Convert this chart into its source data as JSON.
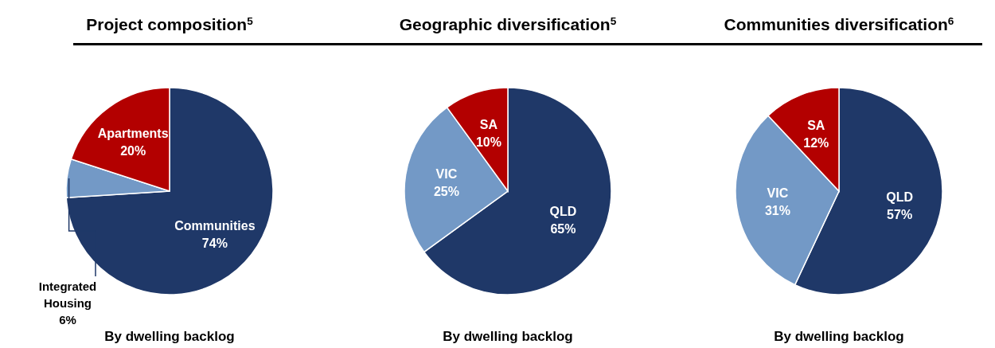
{
  "chart_data": [
    {
      "type": "pie",
      "title": "Project composition$^{5}$",
      "categories": [
        "Communities",
        "Integrated Housing",
        "Apartments"
      ],
      "values": [
        74,
        6,
        20
      ],
      "value_labels": [
        "74%",
        "6%",
        "20%"
      ],
      "colors": [
        "#1f3868",
        "#7399c6",
        "#b30000"
      ],
      "annotations": [
        "By dwelling backlog"
      ]
    },
    {
      "type": "pie",
      "title": "Geographic diversification$^{5}$",
      "categories": [
        "QLD",
        "VIC",
        "SA"
      ],
      "values": [
        65,
        25,
        10
      ],
      "value_labels": [
        "65%",
        "25%",
        "10%"
      ],
      "colors": [
        "#1f3868",
        "#7399c6",
        "#b30000"
      ],
      "annotations": [
        "By dwelling backlog"
      ]
    },
    {
      "type": "pie",
      "title": "Communities diversification$^{6}$",
      "categories": [
        "QLD",
        "VIC",
        "SA"
      ],
      "values": [
        57,
        31,
        12
      ],
      "value_labels": [
        "57%",
        "31%",
        "12%"
      ],
      "colors": [
        "#1f3868",
        "#7399c6",
        "#b30000"
      ],
      "annotations": [
        "By dwelling backlog"
      ]
    }
  ]
}
